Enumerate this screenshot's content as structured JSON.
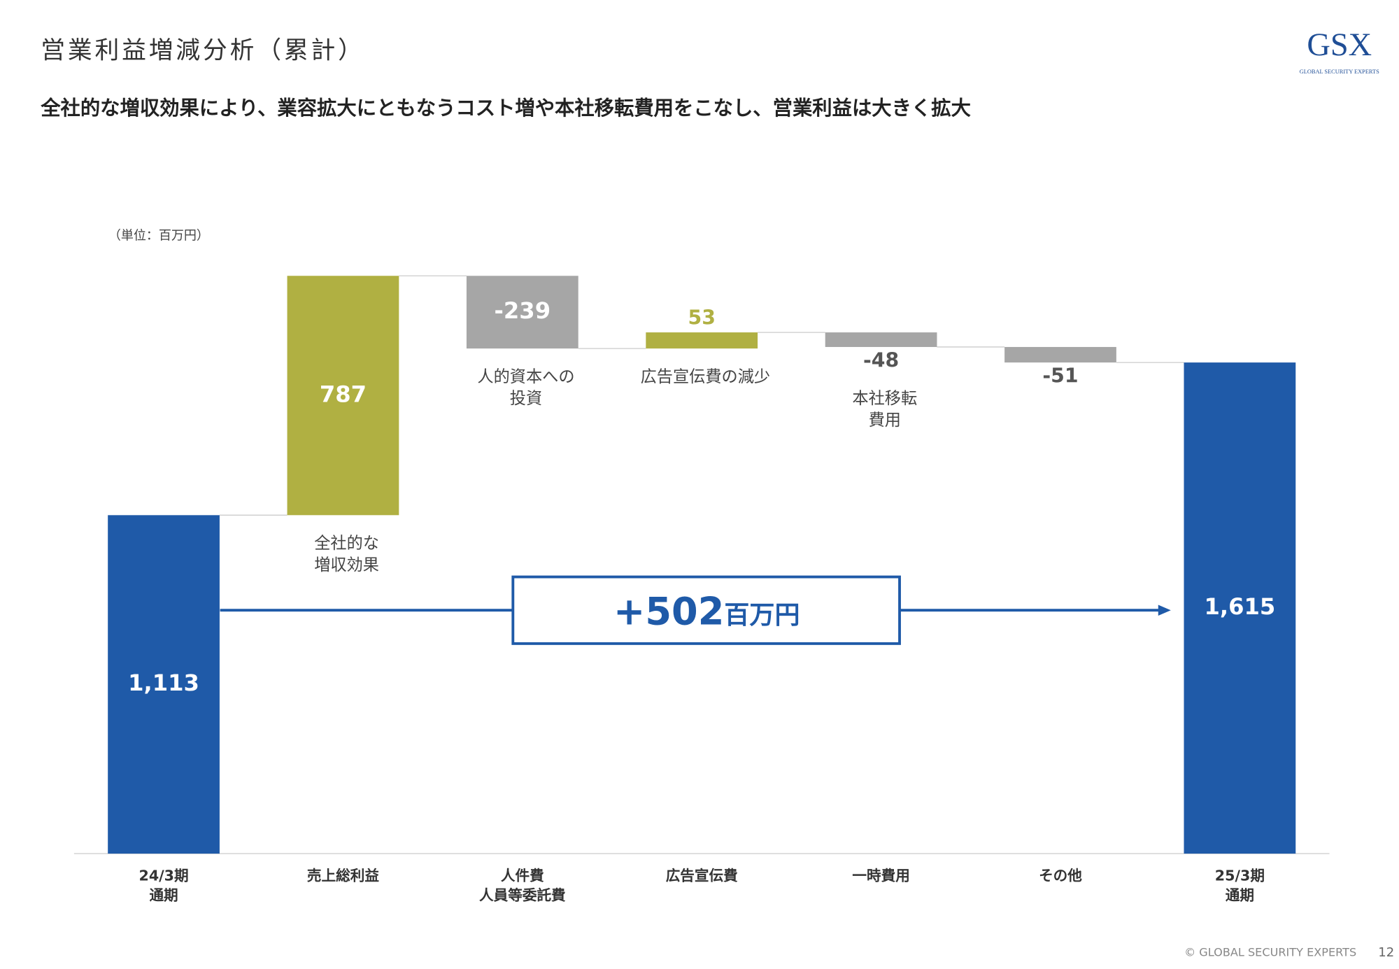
{
  "page": {
    "title": "営業利益増減分析（累計）",
    "subtitle": "全社的な増収効果により、業容拡大にともなうコスト増や本社移転費用をこなし、営業利益は大きく拡大",
    "logo": "GSX",
    "logo_tagline": "GLOBAL SECURITY EXPERTS",
    "footer": "© GLOBAL SECURITY EXPERTS",
    "page_number": "12"
  },
  "chart_data": {
    "type": "waterfall",
    "unit_label": "（単位：百万円）",
    "categories": [
      [
        "24/3期",
        "通期"
      ],
      [
        "売上総利益"
      ],
      [
        "人件費",
        "人員等委託費"
      ],
      [
        "広告宣伝費"
      ],
      [
        "一時費用"
      ],
      [
        "その他"
      ],
      [
        "25/3期",
        "通期"
      ]
    ],
    "values": [
      1113,
      787,
      -239,
      53,
      -48,
      -51,
      1615
    ],
    "value_labels": [
      "1,113",
      "787",
      "-239",
      "53",
      "-48",
      "-51",
      "1,615"
    ],
    "measure": [
      "total",
      "relative",
      "relative",
      "relative",
      "relative",
      "relative",
      "total"
    ],
    "colors": [
      "#1f5aa8",
      "#b0b042",
      "#a6a6a6",
      "#b0b042",
      "#a6a6a6",
      "#a6a6a6",
      "#1f5aa8"
    ],
    "notes": [
      null,
      [
        "全社的な",
        "増収効果"
      ],
      [
        "人的資本への",
        "投資"
      ],
      [
        "広告宣伝費の減少"
      ],
      [
        "本社移転",
        "費用"
      ],
      null,
      null
    ],
    "ylim": [
      0,
      1900
    ],
    "annotation": {
      "text": "+502",
      "unit": "百万円"
    }
  }
}
